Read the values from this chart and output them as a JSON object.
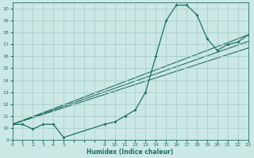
{
  "xlabel": "Humidex (Indice chaleur)",
  "bg_color": "#cce8e4",
  "grid_color": "#aacfcc",
  "line_color": "#1e6e65",
  "xlim": [
    0,
    23
  ],
  "ylim": [
    9,
    20.5
  ],
  "xtick_positions": [
    0,
    1,
    2,
    3,
    4,
    5,
    6,
    7,
    8,
    9,
    10,
    11,
    12,
    13,
    14,
    15,
    16,
    17,
    18,
    19,
    20,
    21,
    22,
    23
  ],
  "xtick_labels": [
    "0",
    "1",
    "2",
    "3",
    "4",
    "5",
    "",
    "",
    "",
    "9",
    "10",
    "11",
    "12",
    "13",
    "14",
    "15",
    "16",
    "17",
    "18",
    "19",
    "20",
    "21",
    "22",
    "23"
  ],
  "ytick_positions": [
    9,
    10,
    11,
    12,
    13,
    14,
    15,
    16,
    17,
    18,
    19,
    20
  ],
  "ytick_labels": [
    "9",
    "10",
    "11",
    "12",
    "13",
    "14",
    "15",
    "16",
    "17",
    "18",
    "19",
    "20"
  ],
  "series1_x": [
    0,
    1,
    2,
    3,
    4,
    5,
    9,
    10,
    11,
    12,
    13,
    14,
    15,
    16,
    17,
    18,
    19,
    20,
    21,
    22,
    23
  ],
  "series1_y": [
    10.3,
    10.3,
    9.9,
    10.3,
    10.3,
    9.2,
    10.3,
    10.5,
    11.0,
    11.5,
    13.0,
    16.0,
    19.0,
    20.3,
    20.3,
    19.5,
    17.5,
    16.5,
    17.0,
    17.2,
    17.8
  ],
  "line2_x": [
    0,
    23
  ],
  "line2_y": [
    10.3,
    17.8
  ],
  "line3_x": [
    0,
    23
  ],
  "line3_y": [
    10.3,
    16.7
  ],
  "line4_x": [
    0,
    23
  ],
  "line4_y": [
    10.3,
    17.25
  ]
}
